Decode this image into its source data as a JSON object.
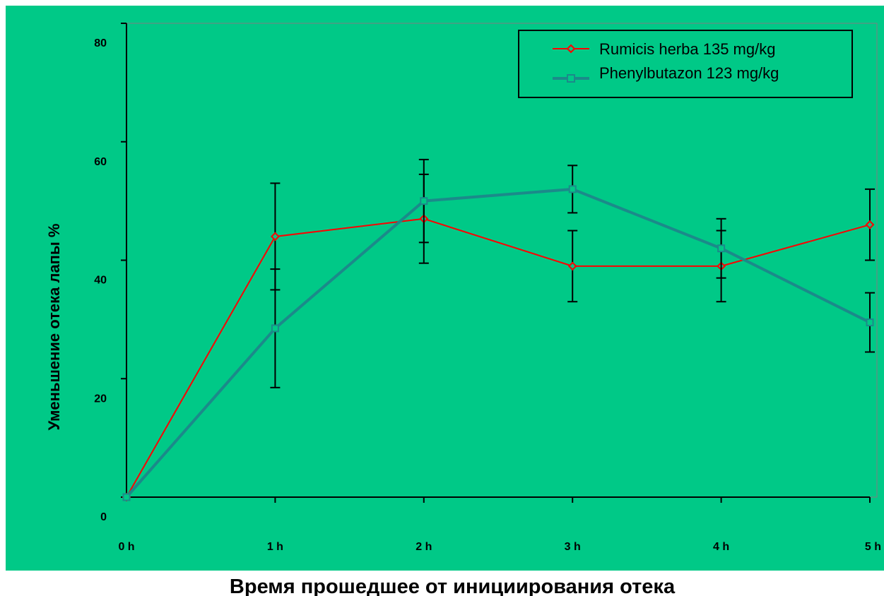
{
  "chart_data": {
    "type": "line",
    "title": "",
    "xlabel": "Время прошедшее от инициирования отека",
    "ylabel": "Уменьшение отека лапы %",
    "categories": [
      "0 h",
      "1 h",
      "2 h",
      "3 h",
      "4 h",
      "5 h"
    ],
    "y_ticks": [
      "0",
      "20",
      "40",
      "60",
      "80"
    ],
    "ylim": [
      0,
      80
    ],
    "grid": false,
    "legend_position": "top-right",
    "background_color": "#00c987",
    "series": [
      {
        "name": "Rumicis herba 135 mg/kg",
        "color": "#ff0000",
        "marker": "diamond",
        "values": [
          0,
          44,
          47,
          39,
          39,
          46
        ],
        "error": [
          0,
          9,
          7.5,
          6,
          6,
          6
        ]
      },
      {
        "name": "Phenylbutazon 123 mg/kg",
        "color": "#1b8a8a",
        "marker": "square",
        "values": [
          0,
          28.5,
          50,
          52,
          42,
          29.5
        ],
        "error": [
          0,
          10,
          7,
          4,
          5,
          5
        ]
      }
    ]
  }
}
